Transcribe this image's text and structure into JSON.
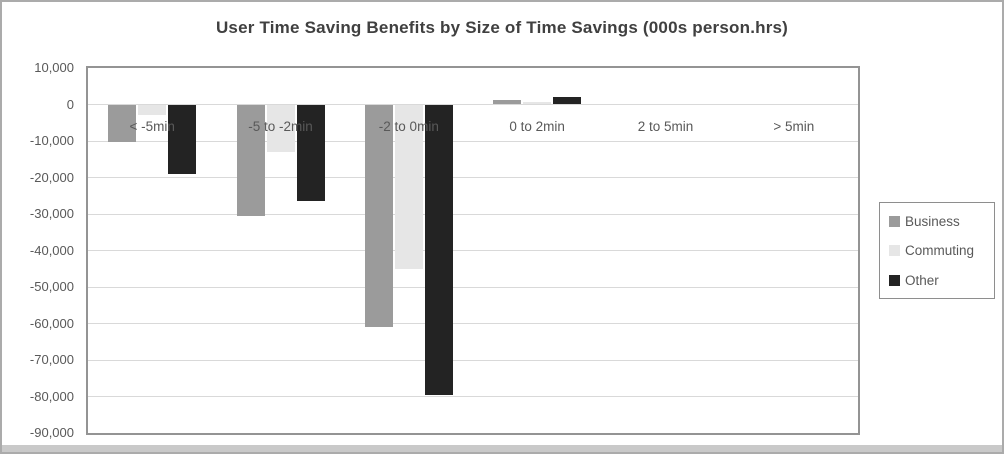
{
  "chart_data": {
    "type": "bar",
    "title": "User Time Saving Benefits by Size of Time Savings (000s person.hrs)",
    "categories": [
      "< -5min",
      "-5 to -2min",
      "-2 to 0min",
      "0 to 2min",
      "2 to 5min",
      "> 5min"
    ],
    "series": [
      {
        "name": "Business",
        "color": "#9B9B9B",
        "values": [
          -10300,
          -30500,
          -61000,
          1200,
          0,
          0
        ]
      },
      {
        "name": "Commuting",
        "color": "#E6E6E6",
        "values": [
          -3000,
          -13000,
          -45000,
          600,
          0,
          0
        ]
      },
      {
        "name": "Other",
        "color": "#232323",
        "values": [
          -19000,
          -26500,
          -79700,
          2100,
          0,
          0
        ]
      }
    ],
    "ylim": [
      -90000,
      10000
    ],
    "ytick_values": [
      10000,
      0,
      -10000,
      -20000,
      -30000,
      -40000,
      -50000,
      -60000,
      -70000,
      -80000,
      -90000
    ],
    "ytick_labels": [
      "10,000",
      "0",
      "-10,000",
      "-20,000",
      "-30,000",
      "-40,000",
      "-50,000",
      "-60,000",
      "-70,000",
      "-80,000",
      "-90,000"
    ],
    "xlabel": "",
    "ylabel": "",
    "grid": true,
    "legend_position": "right"
  }
}
